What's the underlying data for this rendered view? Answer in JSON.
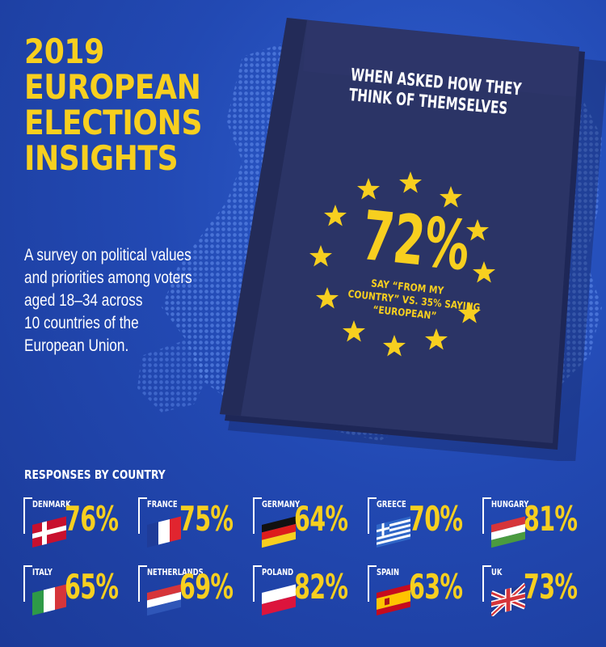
{
  "header": {
    "title_lines": [
      "2019",
      "EUROPEAN",
      "ELECTIONS",
      "INSIGHTS"
    ],
    "subtitle_lines": [
      "A survey on political values",
      "and priorities among voters",
      "aged 18–34 across",
      "10 countries of the",
      "European Union."
    ]
  },
  "passport": {
    "question_lines": [
      "WHEN ASKED HOW THEY",
      "THINK OF THEMSELVES"
    ],
    "headline_percent": "72%",
    "note_lines": [
      "SAY “FROM MY",
      "COUNTRY” VS. 35% SAYING",
      "“EUROPEAN”"
    ],
    "star_icon": "star-icon",
    "star_count": 12
  },
  "responses": {
    "title": "RESPONSES BY COUNTRY",
    "countries": [
      {
        "name": "DENMARK",
        "percent": "76%",
        "flag_icon": "denmark-flag-icon"
      },
      {
        "name": "FRANCE",
        "percent": "75%",
        "flag_icon": "france-flag-icon"
      },
      {
        "name": "GERMANY",
        "percent": "64%",
        "flag_icon": "germany-flag-icon"
      },
      {
        "name": "GREECE",
        "percent": "70%",
        "flag_icon": "greece-flag-icon"
      },
      {
        "name": "HUNGARY",
        "percent": "81%",
        "flag_icon": "hungary-flag-icon"
      },
      {
        "name": "ITALY",
        "percent": "65%",
        "flag_icon": "italy-flag-icon"
      },
      {
        "name": "NETHERLANDS",
        "percent": "69%",
        "flag_icon": "netherlands-flag-icon"
      },
      {
        "name": "POLAND",
        "percent": "82%",
        "flag_icon": "poland-flag-icon"
      },
      {
        "name": "SPAIN",
        "percent": "63%",
        "flag_icon": "spain-flag-icon"
      },
      {
        "name": "UK",
        "percent": "73%",
        "flag_icon": "uk-flag-icon"
      }
    ]
  },
  "colors": {
    "background": "#2249b3",
    "accent_yellow": "#f7cf1f",
    "passport": "#2b3466",
    "text": "#ffffff"
  }
}
